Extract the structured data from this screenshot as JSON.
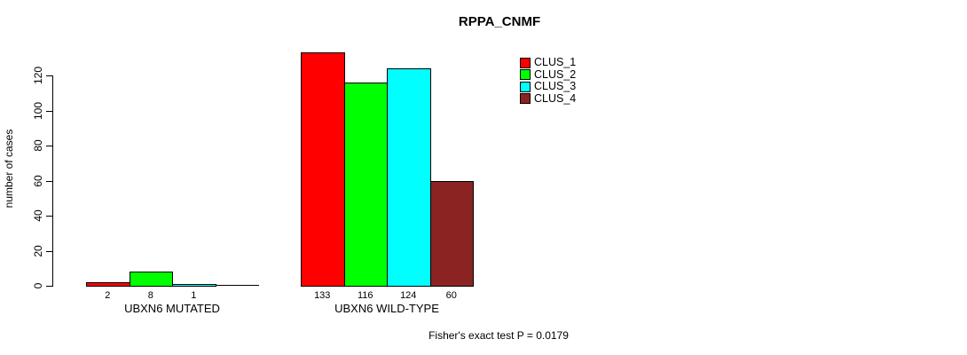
{
  "chart_data": {
    "type": "bar",
    "title": "RPPA_CNMF",
    "ylabel": "number of cases",
    "xlabel": "",
    "categories": [
      "UBXN6 MUTATED",
      "UBXN6 WILD-TYPE"
    ],
    "series": [
      {
        "name": "CLUS_1",
        "color": "#ff0000",
        "values": [
          2,
          133
        ]
      },
      {
        "name": "CLUS_2",
        "color": "#00ff00",
        "values": [
          8,
          116
        ]
      },
      {
        "name": "CLUS_3",
        "color": "#00ffff",
        "values": [
          1,
          124
        ]
      },
      {
        "name": "CLUS_4",
        "color": "#8b2323",
        "values": [
          0,
          60
        ]
      }
    ],
    "bar_value_labels": [
      [
        "2",
        "8",
        "1",
        ""
      ],
      [
        "133",
        "116",
        "124",
        "60"
      ]
    ],
    "yticks": [
      0,
      20,
      40,
      60,
      80,
      100,
      120
    ],
    "ylim": [
      0,
      140
    ],
    "grid": false,
    "legend_position": "top-right",
    "annotation": "Fisher's exact test P = 0.0179"
  },
  "colors": {
    "background": "#ffffff",
    "axis": "#000000",
    "text": "#000000"
  }
}
